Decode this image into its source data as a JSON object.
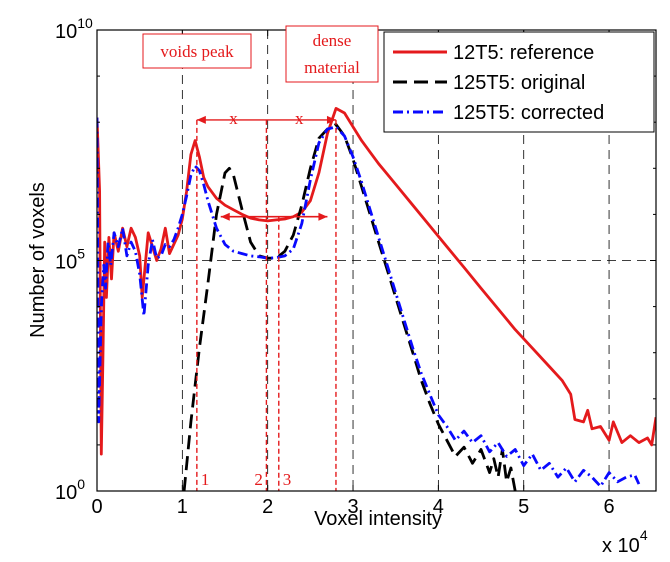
{
  "chart_data": {
    "type": "line",
    "xlabel": "Voxel intensity",
    "ylabel": "Number of voxels",
    "x_multiplier_label": "x 10",
    "x_multiplier_exp": "4",
    "xlim": [
      0,
      6.55
    ],
    "ylim_log10": [
      0,
      10
    ],
    "y_scale": "log",
    "grid": true,
    "x_ticks": [
      0,
      1,
      2,
      3,
      4,
      5,
      6
    ],
    "x_tick_labels": [
      "0",
      "1",
      "2",
      "3",
      "4",
      "5",
      "6"
    ],
    "y_ticks": [
      {
        "base": "10",
        "exp": "0",
        "log": 0
      },
      {
        "base": "10",
        "exp": "5",
        "log": 5
      },
      {
        "base": "10",
        "exp": "10",
        "log": 10
      }
    ],
    "legend_position": "top-right",
    "series": [
      {
        "name": "12T5: reference",
        "color": "#e41a1c",
        "dash": "solid",
        "points": [
          [
            0.0,
            8.1
          ],
          [
            0.03,
            6.5
          ],
          [
            0.05,
            0.8
          ],
          [
            0.07,
            3.0
          ],
          [
            0.09,
            5.4
          ],
          [
            0.11,
            4.2
          ],
          [
            0.14,
            5.5
          ],
          [
            0.17,
            4.6
          ],
          [
            0.2,
            5.6
          ],
          [
            0.25,
            5.2
          ],
          [
            0.3,
            5.7
          ],
          [
            0.35,
            5.3
          ],
          [
            0.4,
            5.7
          ],
          [
            0.45,
            5.5
          ],
          [
            0.5,
            5.1
          ],
          [
            0.53,
            4.2
          ],
          [
            0.56,
            4.8
          ],
          [
            0.6,
            5.6
          ],
          [
            0.65,
            5.3
          ],
          [
            0.7,
            5.0
          ],
          [
            0.75,
            5.25
          ],
          [
            0.8,
            5.7
          ],
          [
            0.85,
            5.15
          ],
          [
            0.9,
            5.35
          ],
          [
            0.95,
            5.55
          ],
          [
            1.0,
            5.9
          ],
          [
            1.05,
            6.5
          ],
          [
            1.1,
            7.3
          ],
          [
            1.15,
            7.6
          ],
          [
            1.2,
            7.25
          ],
          [
            1.25,
            6.8
          ],
          [
            1.3,
            6.6
          ],
          [
            1.4,
            6.35
          ],
          [
            1.5,
            6.2
          ],
          [
            1.6,
            6.1
          ],
          [
            1.7,
            6.0
          ],
          [
            1.8,
            5.92
          ],
          [
            1.9,
            5.88
          ],
          [
            2.0,
            5.86
          ],
          [
            2.1,
            5.88
          ],
          [
            2.2,
            5.9
          ],
          [
            2.3,
            5.95
          ],
          [
            2.4,
            6.05
          ],
          [
            2.5,
            6.3
          ],
          [
            2.6,
            6.9
          ],
          [
            2.7,
            7.75
          ],
          [
            2.8,
            8.3
          ],
          [
            2.9,
            8.2
          ],
          [
            3.0,
            7.9
          ],
          [
            3.1,
            7.6
          ],
          [
            3.2,
            7.35
          ],
          [
            3.3,
            7.1
          ],
          [
            3.5,
            6.65
          ],
          [
            3.7,
            6.2
          ],
          [
            3.9,
            5.75
          ],
          [
            4.1,
            5.3
          ],
          [
            4.3,
            4.85
          ],
          [
            4.5,
            4.4
          ],
          [
            4.7,
            3.95
          ],
          [
            4.9,
            3.5
          ],
          [
            5.1,
            3.1
          ],
          [
            5.3,
            2.7
          ],
          [
            5.45,
            2.4
          ],
          [
            5.55,
            2.1
          ],
          [
            5.6,
            1.55
          ],
          [
            5.7,
            1.5
          ],
          [
            5.75,
            1.75
          ],
          [
            5.8,
            1.35
          ],
          [
            5.9,
            1.4
          ],
          [
            6.0,
            1.1
          ],
          [
            6.05,
            1.5
          ],
          [
            6.15,
            1.05
          ],
          [
            6.25,
            1.2
          ],
          [
            6.35,
            1.05
          ],
          [
            6.45,
            1.15
          ],
          [
            6.5,
            1.0
          ],
          [
            6.55,
            1.6
          ]
        ]
      },
      {
        "name": "125T5: original",
        "color": "#000000",
        "dash": "dashed",
        "points": [
          [
            1.02,
            0.0
          ],
          [
            1.1,
            1.5
          ],
          [
            1.2,
            3.1
          ],
          [
            1.3,
            4.5
          ],
          [
            1.4,
            6.0
          ],
          [
            1.5,
            6.9
          ],
          [
            1.55,
            7.0
          ],
          [
            1.6,
            6.85
          ],
          [
            1.7,
            6.1
          ],
          [
            1.8,
            5.4
          ],
          [
            1.9,
            5.1
          ],
          [
            2.0,
            5.05
          ],
          [
            2.1,
            5.05
          ],
          [
            2.2,
            5.2
          ],
          [
            2.3,
            5.55
          ],
          [
            2.4,
            6.2
          ],
          [
            2.5,
            7.0
          ],
          [
            2.6,
            7.65
          ],
          [
            2.7,
            7.85
          ],
          [
            2.8,
            7.95
          ],
          [
            2.9,
            7.7
          ],
          [
            3.0,
            7.2
          ],
          [
            3.1,
            6.6
          ],
          [
            3.2,
            6.0
          ],
          [
            3.3,
            5.4
          ],
          [
            3.4,
            4.8
          ],
          [
            3.5,
            4.2
          ],
          [
            3.6,
            3.6
          ],
          [
            3.7,
            3.0
          ],
          [
            3.8,
            2.4
          ],
          [
            3.9,
            1.9
          ],
          [
            4.0,
            1.45
          ],
          [
            4.1,
            1.1
          ],
          [
            4.2,
            0.75
          ],
          [
            4.3,
            0.95
          ],
          [
            4.4,
            0.6
          ],
          [
            4.5,
            0.9
          ],
          [
            4.6,
            0.4
          ],
          [
            4.65,
            0.7
          ],
          [
            4.7,
            0.3
          ],
          [
            4.75,
            0.9
          ],
          [
            4.8,
            0.2
          ],
          [
            4.85,
            0.5
          ],
          [
            4.9,
            0.0
          ]
        ]
      },
      {
        "name": "125T5: corrected",
        "color": "#0a0aff",
        "dash": "dashdot",
        "points": [
          [
            0.0,
            8.1
          ],
          [
            0.02,
            1.5
          ],
          [
            0.05,
            4.0
          ],
          [
            0.08,
            4.9
          ],
          [
            0.1,
            4.4
          ],
          [
            0.13,
            5.4
          ],
          [
            0.16,
            4.9
          ],
          [
            0.2,
            5.6
          ],
          [
            0.25,
            5.3
          ],
          [
            0.3,
            5.7
          ],
          [
            0.35,
            5.1
          ],
          [
            0.4,
            5.4
          ],
          [
            0.45,
            5.2
          ],
          [
            0.5,
            4.7
          ],
          [
            0.55,
            3.8
          ],
          [
            0.6,
            4.9
          ],
          [
            0.65,
            5.45
          ],
          [
            0.7,
            5.05
          ],
          [
            0.75,
            5.1
          ],
          [
            0.8,
            5.35
          ],
          [
            0.85,
            5.3
          ],
          [
            0.9,
            5.45
          ],
          [
            0.95,
            5.7
          ],
          [
            1.0,
            6.0
          ],
          [
            1.05,
            6.4
          ],
          [
            1.1,
            6.85
          ],
          [
            1.15,
            7.05
          ],
          [
            1.2,
            6.95
          ],
          [
            1.25,
            6.65
          ],
          [
            1.3,
            6.3
          ],
          [
            1.35,
            6.0
          ],
          [
            1.4,
            5.7
          ],
          [
            1.5,
            5.35
          ],
          [
            1.6,
            5.2
          ],
          [
            1.7,
            5.15
          ],
          [
            1.8,
            5.1
          ],
          [
            1.9,
            5.08
          ],
          [
            2.0,
            5.05
          ],
          [
            2.1,
            5.06
          ],
          [
            2.2,
            5.1
          ],
          [
            2.3,
            5.25
          ],
          [
            2.4,
            5.8
          ],
          [
            2.5,
            6.75
          ],
          [
            2.6,
            7.55
          ],
          [
            2.7,
            7.85
          ],
          [
            2.8,
            7.9
          ],
          [
            2.9,
            7.7
          ],
          [
            3.0,
            7.25
          ],
          [
            3.1,
            6.7
          ],
          [
            3.2,
            6.1
          ],
          [
            3.3,
            5.5
          ],
          [
            3.4,
            4.9
          ],
          [
            3.5,
            4.3
          ],
          [
            3.6,
            3.7
          ],
          [
            3.7,
            3.1
          ],
          [
            3.8,
            2.55
          ],
          [
            3.9,
            2.1
          ],
          [
            4.0,
            1.65
          ],
          [
            4.1,
            1.4
          ],
          [
            4.2,
            1.1
          ],
          [
            4.3,
            1.3
          ],
          [
            4.4,
            1.05
          ],
          [
            4.5,
            1.2
          ],
          [
            4.6,
            0.85
          ],
          [
            4.7,
            1.05
          ],
          [
            4.8,
            0.75
          ],
          [
            4.9,
            0.9
          ],
          [
            5.0,
            0.55
          ],
          [
            5.1,
            0.8
          ],
          [
            5.2,
            0.45
          ],
          [
            5.3,
            0.6
          ],
          [
            5.4,
            0.3
          ],
          [
            5.5,
            0.5
          ],
          [
            5.6,
            0.2
          ],
          [
            5.7,
            0.45
          ],
          [
            5.8,
            0.3
          ],
          [
            5.9,
            0.1
          ],
          [
            6.0,
            0.4
          ],
          [
            6.1,
            0.2
          ],
          [
            6.2,
            0.3
          ],
          [
            6.3,
            0.35
          ],
          [
            6.35,
            0.15
          ]
        ]
      }
    ],
    "annotations": {
      "color": "#e41a1c",
      "voids_peak": {
        "label": "voids peak",
        "x": 1.17
      },
      "dense_material": {
        "label_line1": "dense",
        "label_line2": "material",
        "x": 2.8
      },
      "center_marker": {
        "x": 1.985
      },
      "markers": [
        {
          "label": "1",
          "x": 1.17
        },
        {
          "label": "2",
          "x": 1.985
        },
        {
          "label": "3",
          "x": 2.13
        }
      ],
      "dim_arrow": {
        "x1": 1.17,
        "x2": 2.8,
        "logy": 8.05
      },
      "dim_marks": [
        {
          "label": "x",
          "x": 1.6
        },
        {
          "label": "x",
          "x": 2.37
        }
      ],
      "range_arrow": {
        "x1": 1.45,
        "x2": 2.7,
        "logy": 5.95
      }
    }
  }
}
